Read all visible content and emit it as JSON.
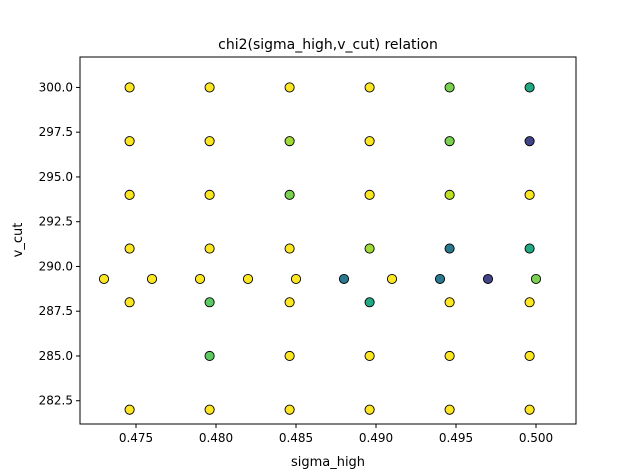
{
  "chart_data": {
    "type": "scatter",
    "title": "chi2(sigma_high,v_cut) relation",
    "xlabel": "sigma_high",
    "ylabel": "v_cut",
    "xlim": [
      0.4715,
      0.5025
    ],
    "ylim": [
      281.2,
      301.7
    ],
    "xticks": [
      0.475,
      0.48,
      0.485,
      0.49,
      0.495,
      0.5
    ],
    "xtick_labels": [
      "0.475",
      "0.480",
      "0.485",
      "0.490",
      "0.495",
      "0.500"
    ],
    "yticks": [
      282.5,
      285.0,
      287.5,
      290.0,
      292.5,
      295.0,
      297.5,
      300.0
    ],
    "ytick_labels": [
      "282.5",
      "285.0",
      "287.5",
      "290.0",
      "292.5",
      "295.0",
      "297.5",
      "300.0"
    ],
    "grid": false,
    "marker_edge_color": "#000000",
    "colormap": "viridis",
    "points": [
      {
        "x": 0.4746,
        "y": 300,
        "color": "#fde725"
      },
      {
        "x": 0.4796,
        "y": 300,
        "color": "#fde725"
      },
      {
        "x": 0.4846,
        "y": 300,
        "color": "#fde725"
      },
      {
        "x": 0.4896,
        "y": 300,
        "color": "#fde725"
      },
      {
        "x": 0.4946,
        "y": 300,
        "color": "#7ad151"
      },
      {
        "x": 0.4996,
        "y": 300,
        "color": "#22a884"
      },
      {
        "x": 0.4746,
        "y": 297,
        "color": "#fde725"
      },
      {
        "x": 0.4796,
        "y": 297,
        "color": "#fde725"
      },
      {
        "x": 0.4846,
        "y": 297,
        "color": "#a0da39"
      },
      {
        "x": 0.4896,
        "y": 297,
        "color": "#fde725"
      },
      {
        "x": 0.4946,
        "y": 297,
        "color": "#7ad151"
      },
      {
        "x": 0.4996,
        "y": 297,
        "color": "#414487"
      },
      {
        "x": 0.4746,
        "y": 294,
        "color": "#fde725"
      },
      {
        "x": 0.4796,
        "y": 294,
        "color": "#fde725"
      },
      {
        "x": 0.4846,
        "y": 294,
        "color": "#7ad151"
      },
      {
        "x": 0.4896,
        "y": 294,
        "color": "#fde725"
      },
      {
        "x": 0.4946,
        "y": 294,
        "color": "#bddf26"
      },
      {
        "x": 0.4996,
        "y": 294,
        "color": "#fde725"
      },
      {
        "x": 0.4746,
        "y": 291,
        "color": "#fde725"
      },
      {
        "x": 0.4796,
        "y": 291,
        "color": "#fde725"
      },
      {
        "x": 0.4846,
        "y": 291,
        "color": "#fde725"
      },
      {
        "x": 0.4896,
        "y": 291,
        "color": "#a0da39"
      },
      {
        "x": 0.4946,
        "y": 291,
        "color": "#2a788e"
      },
      {
        "x": 0.4996,
        "y": 291,
        "color": "#22a884"
      },
      {
        "x": 0.473,
        "y": 289.3,
        "color": "#fde725"
      },
      {
        "x": 0.476,
        "y": 289.3,
        "color": "#fde725"
      },
      {
        "x": 0.479,
        "y": 289.3,
        "color": "#fde725"
      },
      {
        "x": 0.482,
        "y": 289.3,
        "color": "#fde725"
      },
      {
        "x": 0.485,
        "y": 289.3,
        "color": "#fde725"
      },
      {
        "x": 0.488,
        "y": 289.3,
        "color": "#2a788e"
      },
      {
        "x": 0.491,
        "y": 289.3,
        "color": "#fde725"
      },
      {
        "x": 0.494,
        "y": 289.3,
        "color": "#2a788e"
      },
      {
        "x": 0.497,
        "y": 289.3,
        "color": "#414487"
      },
      {
        "x": 0.5,
        "y": 289.3,
        "color": "#7ad151"
      },
      {
        "x": 0.4746,
        "y": 288,
        "color": "#fde725"
      },
      {
        "x": 0.4796,
        "y": 288,
        "color": "#5ec962"
      },
      {
        "x": 0.4846,
        "y": 288,
        "color": "#fde725"
      },
      {
        "x": 0.4896,
        "y": 288,
        "color": "#22a884"
      },
      {
        "x": 0.4946,
        "y": 288,
        "color": "#fde725"
      },
      {
        "x": 0.4996,
        "y": 288,
        "color": "#fde725"
      },
      {
        "x": 0.4796,
        "y": 285,
        "color": "#5ec962"
      },
      {
        "x": 0.4846,
        "y": 285,
        "color": "#fde725"
      },
      {
        "x": 0.4896,
        "y": 285,
        "color": "#fde725"
      },
      {
        "x": 0.4946,
        "y": 285,
        "color": "#fde725"
      },
      {
        "x": 0.4996,
        "y": 285,
        "color": "#fde725"
      },
      {
        "x": 0.4746,
        "y": 282,
        "color": "#fde725"
      },
      {
        "x": 0.4796,
        "y": 282,
        "color": "#fde725"
      },
      {
        "x": 0.4846,
        "y": 282,
        "color": "#fde725"
      },
      {
        "x": 0.4896,
        "y": 282,
        "color": "#fde725"
      },
      {
        "x": 0.4946,
        "y": 282,
        "color": "#fde725"
      },
      {
        "x": 0.4996,
        "y": 282,
        "color": "#fde725"
      }
    ]
  }
}
